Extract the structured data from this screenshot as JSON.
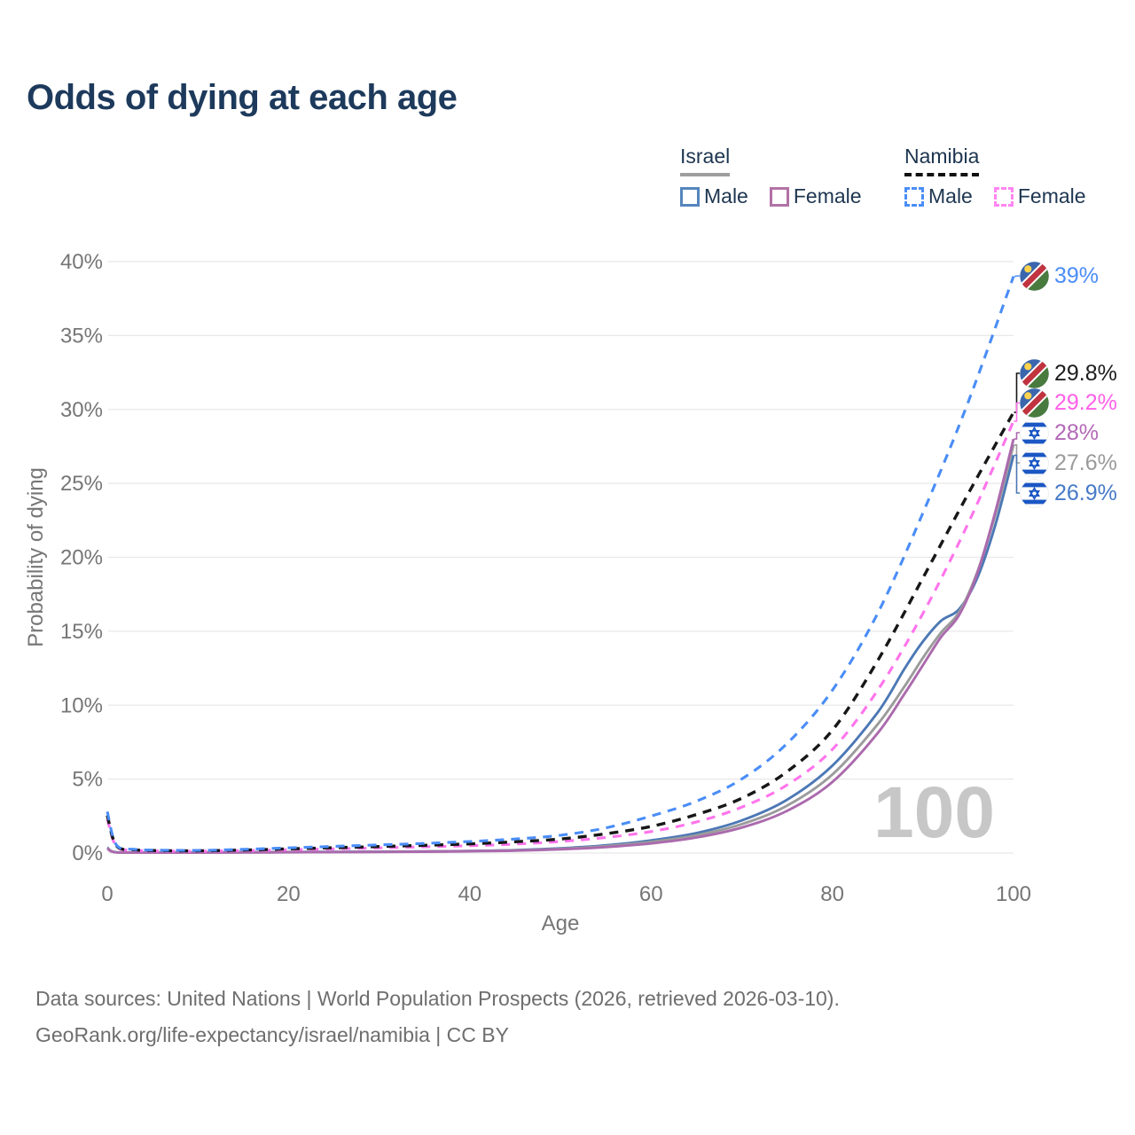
{
  "title": "Odds of dying at each age",
  "legend": {
    "israel": {
      "title": "Israel",
      "male_label": "Male",
      "female_label": "Female"
    },
    "namibia": {
      "title": "Namibia",
      "male_label": "Male",
      "female_label": "Female"
    }
  },
  "footer": {
    "line1": "Data sources: United Nations | World Population Prospects (2026, retrieved 2026-03-10).",
    "line2": "GeoRank.org/life-expectancy/israel/namibia | CC BY"
  },
  "chart_data": {
    "type": "line",
    "title": "Odds of dying at each age",
    "xlabel": "Age",
    "ylabel": "Probability of dying",
    "xlim": [
      0,
      100
    ],
    "ylim": [
      0,
      40
    ],
    "xticks": [
      0,
      20,
      40,
      60,
      80,
      100
    ],
    "yticks": [
      0,
      5,
      10,
      15,
      20,
      25,
      30,
      35,
      40
    ],
    "grid": true,
    "legend_position": "top-right",
    "hover_age_indicator": "100",
    "colors": {
      "israel_male": "#4c78b5",
      "israel_total": "#9b9b9b",
      "israel_female": "#ab6aad",
      "namibia_male": "#4a8df7",
      "namibia_total": "#171717",
      "namibia_female": "#ff74ec"
    },
    "series": [
      {
        "name": "Namibia Male",
        "country": "namibia",
        "sex": "male",
        "line_style": "dashed",
        "color": "#4a8df7",
        "label_color": "#4a8df7",
        "end_label": "39%",
        "end_value": 39.0,
        "points": [
          [
            0,
            2.8
          ],
          [
            1,
            0.55
          ],
          [
            3,
            0.25
          ],
          [
            5,
            0.2
          ],
          [
            10,
            0.18
          ],
          [
            15,
            0.25
          ],
          [
            20,
            0.35
          ],
          [
            25,
            0.45
          ],
          [
            30,
            0.55
          ],
          [
            35,
            0.65
          ],
          [
            40,
            0.78
          ],
          [
            45,
            0.95
          ],
          [
            50,
            1.2
          ],
          [
            55,
            1.7
          ],
          [
            60,
            2.5
          ],
          [
            65,
            3.5
          ],
          [
            70,
            5.0
          ],
          [
            75,
            7.4
          ],
          [
            80,
            11.0
          ],
          [
            85,
            16.2
          ],
          [
            90,
            23.0
          ],
          [
            95,
            30.5
          ],
          [
            100,
            39.0
          ]
        ]
      },
      {
        "name": "Namibia (both sexes)",
        "country": "namibia",
        "sex": "total",
        "line_style": "dashed",
        "color": "#171717",
        "label_color": "#1c1c1c",
        "end_label": "29.8%",
        "end_value": 29.8,
        "points": [
          [
            0,
            2.55
          ],
          [
            1,
            0.5
          ],
          [
            3,
            0.22
          ],
          [
            5,
            0.17
          ],
          [
            10,
            0.15
          ],
          [
            15,
            0.2
          ],
          [
            20,
            0.28
          ],
          [
            25,
            0.36
          ],
          [
            30,
            0.44
          ],
          [
            35,
            0.52
          ],
          [
            40,
            0.62
          ],
          [
            45,
            0.76
          ],
          [
            50,
            0.95
          ],
          [
            55,
            1.3
          ],
          [
            60,
            1.8
          ],
          [
            65,
            2.6
          ],
          [
            70,
            3.7
          ],
          [
            75,
            5.5
          ],
          [
            80,
            8.3
          ],
          [
            85,
            13.0
          ],
          [
            90,
            18.6
          ],
          [
            95,
            24.3
          ],
          [
            100,
            29.8
          ]
        ]
      },
      {
        "name": "Namibia Female",
        "country": "namibia",
        "sex": "female",
        "line_style": "dashed",
        "color": "#ff74ec",
        "label_color": "#ff60e8",
        "end_label": "29.2%",
        "end_value": 29.2,
        "points": [
          [
            0,
            2.3
          ],
          [
            1,
            0.45
          ],
          [
            3,
            0.19
          ],
          [
            5,
            0.14
          ],
          [
            10,
            0.12
          ],
          [
            15,
            0.16
          ],
          [
            20,
            0.22
          ],
          [
            25,
            0.28
          ],
          [
            30,
            0.35
          ],
          [
            35,
            0.42
          ],
          [
            40,
            0.5
          ],
          [
            45,
            0.6
          ],
          [
            50,
            0.78
          ],
          [
            55,
            1.05
          ],
          [
            60,
            1.45
          ],
          [
            65,
            2.1
          ],
          [
            70,
            3.1
          ],
          [
            75,
            4.6
          ],
          [
            80,
            7.0
          ],
          [
            85,
            11.0
          ],
          [
            90,
            16.2
          ],
          [
            95,
            22.3
          ],
          [
            100,
            29.2
          ]
        ]
      },
      {
        "name": "Israel Female",
        "country": "israel",
        "sex": "female",
        "line_style": "solid",
        "color": "#ab6aad",
        "label_color": "#b368b6",
        "end_label": "28%",
        "end_value": 28.0,
        "points": [
          [
            0,
            0.3
          ],
          [
            1,
            0.04
          ],
          [
            5,
            0.025
          ],
          [
            10,
            0.025
          ],
          [
            15,
            0.04
          ],
          [
            20,
            0.05
          ],
          [
            25,
            0.06
          ],
          [
            30,
            0.07
          ],
          [
            35,
            0.09
          ],
          [
            40,
            0.12
          ],
          [
            45,
            0.16
          ],
          [
            50,
            0.25
          ],
          [
            55,
            0.4
          ],
          [
            60,
            0.65
          ],
          [
            65,
            1.05
          ],
          [
            70,
            1.72
          ],
          [
            75,
            2.85
          ],
          [
            80,
            4.8
          ],
          [
            85,
            8.1
          ],
          [
            88,
            10.8
          ],
          [
            90,
            12.7
          ],
          [
            92,
            14.6
          ],
          [
            94,
            16.1
          ],
          [
            96,
            18.9
          ],
          [
            98,
            23.1
          ],
          [
            100,
            28.0
          ]
        ]
      },
      {
        "name": "Israel (both sexes)",
        "country": "israel",
        "sex": "total",
        "line_style": "solid",
        "color": "#9b9b9b",
        "label_color": "#9a9a9a",
        "end_label": "27.6%",
        "end_value": 27.6,
        "points": [
          [
            0,
            0.33
          ],
          [
            1,
            0.045
          ],
          [
            5,
            0.027
          ],
          [
            10,
            0.027
          ],
          [
            15,
            0.045
          ],
          [
            20,
            0.06
          ],
          [
            25,
            0.07
          ],
          [
            30,
            0.08
          ],
          [
            35,
            0.1
          ],
          [
            40,
            0.13
          ],
          [
            45,
            0.18
          ],
          [
            50,
            0.28
          ],
          [
            55,
            0.46
          ],
          [
            60,
            0.75
          ],
          [
            65,
            1.2
          ],
          [
            70,
            1.95
          ],
          [
            75,
            3.2
          ],
          [
            80,
            5.3
          ],
          [
            85,
            8.7
          ],
          [
            88,
            11.3
          ],
          [
            90,
            13.2
          ],
          [
            92,
            14.9
          ],
          [
            94,
            16.3
          ],
          [
            96,
            19.0
          ],
          [
            98,
            22.9
          ],
          [
            100,
            27.6
          ]
        ]
      },
      {
        "name": "Israel Male",
        "country": "israel",
        "sex": "male",
        "line_style": "solid",
        "color": "#4c78b5",
        "label_color": "#4679c8",
        "end_label": "26.9%",
        "end_value": 26.9,
        "points": [
          [
            0,
            0.37
          ],
          [
            1,
            0.05
          ],
          [
            5,
            0.03
          ],
          [
            10,
            0.03
          ],
          [
            15,
            0.05
          ],
          [
            20,
            0.07
          ],
          [
            25,
            0.08
          ],
          [
            30,
            0.09
          ],
          [
            35,
            0.11
          ],
          [
            40,
            0.14
          ],
          [
            45,
            0.2
          ],
          [
            50,
            0.32
          ],
          [
            55,
            0.52
          ],
          [
            60,
            0.85
          ],
          [
            65,
            1.35
          ],
          [
            70,
            2.2
          ],
          [
            75,
            3.6
          ],
          [
            80,
            5.9
          ],
          [
            85,
            9.5
          ],
          [
            88,
            12.5
          ],
          [
            90,
            14.3
          ],
          [
            92,
            15.7
          ],
          [
            94,
            16.5
          ],
          [
            96,
            18.6
          ],
          [
            98,
            22.2
          ],
          [
            100,
            26.9
          ]
        ]
      }
    ]
  }
}
